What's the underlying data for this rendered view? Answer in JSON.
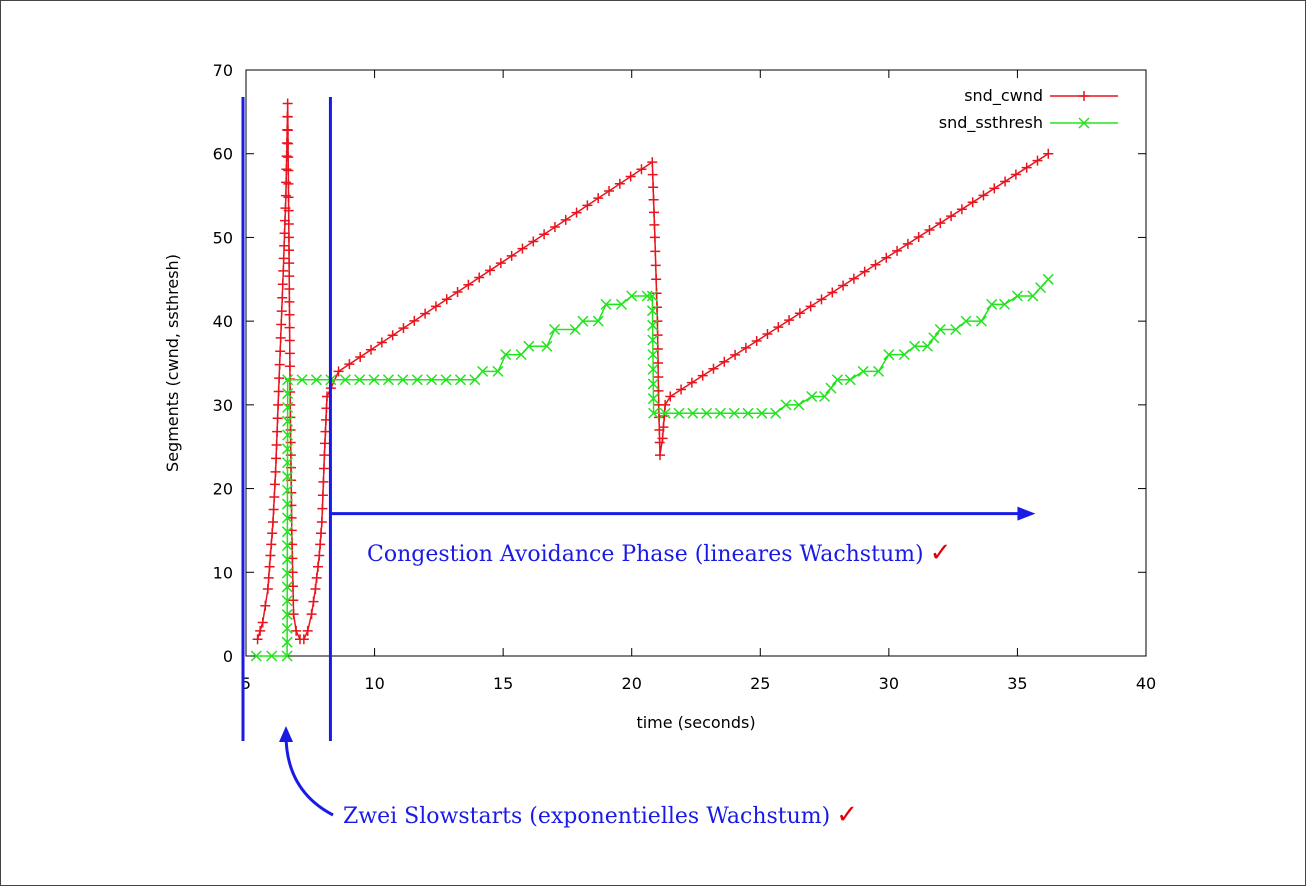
{
  "chart_data": {
    "type": "line",
    "xlabel": "time (seconds)",
    "ylabel": "Segments (cwnd, ssthresh)",
    "xlim": [
      5,
      40
    ],
    "ylim": [
      0,
      70
    ],
    "xticks": [
      5,
      10,
      15,
      20,
      25,
      30,
      35,
      40
    ],
    "yticks": [
      0,
      10,
      20,
      30,
      40,
      50,
      60,
      70
    ],
    "grid": false,
    "legend_position": "top-right",
    "series": [
      {
        "name": "snd_cwnd",
        "color": "#e8141e",
        "marker": "plus",
        "points": [
          [
            5.45,
            2
          ],
          [
            5.55,
            3
          ],
          [
            5.65,
            4
          ],
          [
            5.75,
            6
          ],
          [
            5.85,
            8
          ],
          [
            5.95,
            12
          ],
          [
            6.05,
            16
          ],
          [
            6.15,
            22
          ],
          [
            6.25,
            30
          ],
          [
            6.35,
            38
          ],
          [
            6.45,
            46
          ],
          [
            6.55,
            55
          ],
          [
            6.62,
            66
          ],
          [
            6.67,
            50
          ],
          [
            6.72,
            30
          ],
          [
            6.78,
            15
          ],
          [
            6.85,
            5
          ],
          [
            6.95,
            3
          ],
          [
            7.1,
            2
          ],
          [
            7.25,
            2
          ],
          [
            7.4,
            3
          ],
          [
            7.55,
            5
          ],
          [
            7.7,
            8
          ],
          [
            7.85,
            12
          ],
          [
            7.95,
            16
          ],
          [
            8.05,
            24
          ],
          [
            8.15,
            31
          ],
          [
            8.3,
            32
          ],
          [
            8.6,
            34
          ],
          [
            20.8,
            59
          ],
          [
            20.9,
            50
          ],
          [
            21.0,
            40
          ],
          [
            21.05,
            30
          ],
          [
            21.1,
            24
          ],
          [
            21.2,
            26
          ],
          [
            21.3,
            30
          ],
          [
            21.5,
            31
          ],
          [
            36.2,
            60
          ]
        ]
      },
      {
        "name": "snd_ssthresh",
        "color": "#22e31e",
        "marker": "x",
        "points": [
          [
            5.4,
            0
          ],
          [
            6.6,
            0
          ],
          [
            6.62,
            33
          ],
          [
            8.3,
            33
          ],
          [
            13.9,
            33
          ],
          [
            14.2,
            34
          ],
          [
            14.8,
            34
          ],
          [
            15.1,
            36
          ],
          [
            15.7,
            36
          ],
          [
            16.0,
            37
          ],
          [
            16.7,
            37
          ],
          [
            17.0,
            39
          ],
          [
            17.8,
            39
          ],
          [
            18.1,
            40
          ],
          [
            18.7,
            40
          ],
          [
            19.0,
            42
          ],
          [
            19.6,
            42
          ],
          [
            20.0,
            43
          ],
          [
            20.6,
            43
          ],
          [
            20.8,
            43
          ],
          [
            20.85,
            29
          ],
          [
            21.3,
            29
          ],
          [
            25.6,
            29
          ],
          [
            26.0,
            30
          ],
          [
            26.5,
            30
          ],
          [
            27.0,
            31
          ],
          [
            27.5,
            31
          ],
          [
            28.0,
            33
          ],
          [
            28.5,
            33
          ],
          [
            29.0,
            34
          ],
          [
            29.6,
            34
          ],
          [
            30.0,
            36
          ],
          [
            30.6,
            36
          ],
          [
            31.0,
            37
          ],
          [
            31.5,
            37
          ],
          [
            32.0,
            39
          ],
          [
            32.6,
            39
          ],
          [
            33.0,
            40
          ],
          [
            33.6,
            40
          ],
          [
            34.0,
            42
          ],
          [
            34.5,
            42
          ],
          [
            35.0,
            43
          ],
          [
            35.6,
            43
          ],
          [
            36.2,
            45
          ]
        ]
      }
    ]
  },
  "annotations": {
    "top_text": "Congestion Avoidance Phase (lineares Wachstum)",
    "bottom_text": "Zwei Slowstarts (exponentielles Wachstum)",
    "check_mark": "✓",
    "annotation_color": "#1a1ae6",
    "check_color": "#e0000a",
    "marker_lines_x": [
      5.0,
      8.4
    ],
    "arrow_right_y": 17,
    "arrow_right_from_x": 8.4,
    "arrow_right_to_x": 35.0
  }
}
